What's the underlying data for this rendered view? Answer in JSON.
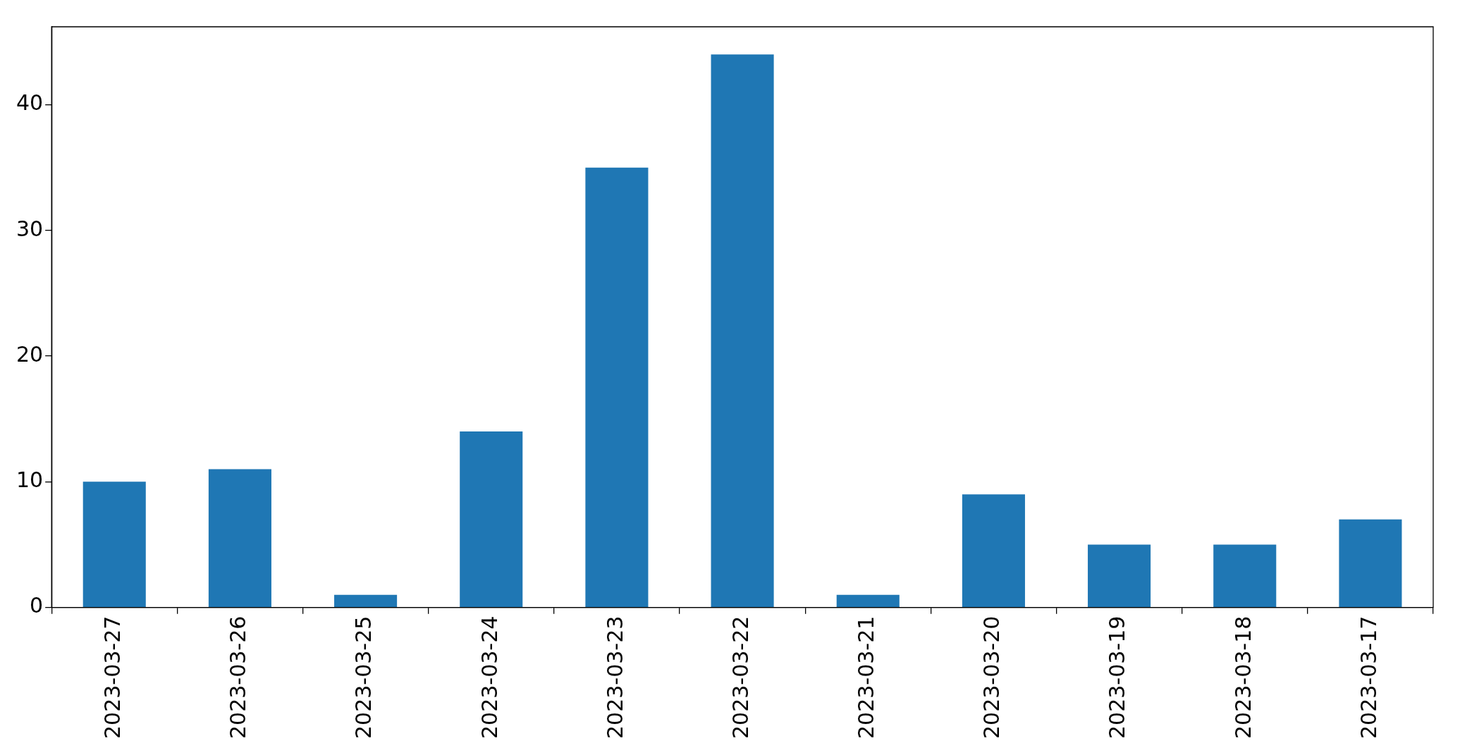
{
  "chart_data": {
    "type": "bar",
    "categories": [
      "2023-03-27",
      "2023-03-26",
      "2023-03-25",
      "2023-03-24",
      "2023-03-23",
      "2023-03-22",
      "2023-03-21",
      "2023-03-20",
      "2023-03-19",
      "2023-03-18",
      "2023-03-17"
    ],
    "values": [
      10,
      11,
      1,
      14,
      35,
      44,
      1,
      9,
      5,
      5,
      7
    ],
    "color": "#1f77b4",
    "ylim": [
      0,
      46.2
    ],
    "yticks": [
      0,
      10,
      20,
      30,
      40
    ],
    "grid": false,
    "legend": false
  }
}
